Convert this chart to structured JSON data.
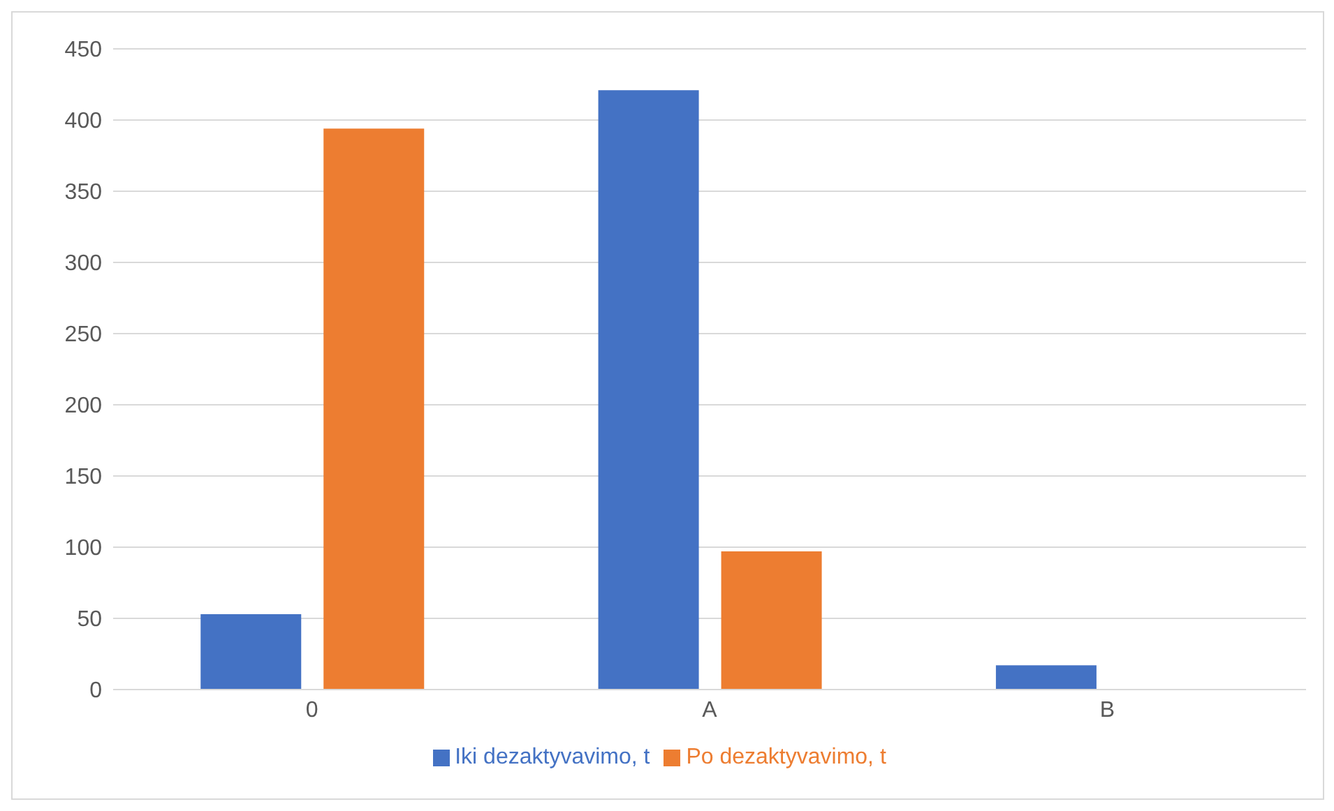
{
  "chart_data": {
    "type": "bar",
    "categories": [
      "0",
      "A",
      "B"
    ],
    "series": [
      {
        "name": "Iki dezaktyvavimo, t",
        "color": "#4472c4",
        "values": [
          53,
          421,
          17
        ]
      },
      {
        "name": "Po dezaktyvavimo, t",
        "color": "#ed7d31",
        "values": [
          394,
          97,
          0
        ]
      }
    ],
    "ylim": [
      0,
      450
    ],
    "yticks": [
      0,
      50,
      100,
      150,
      200,
      250,
      300,
      350,
      400,
      450
    ],
    "grid": "y",
    "legend": "bottom"
  }
}
